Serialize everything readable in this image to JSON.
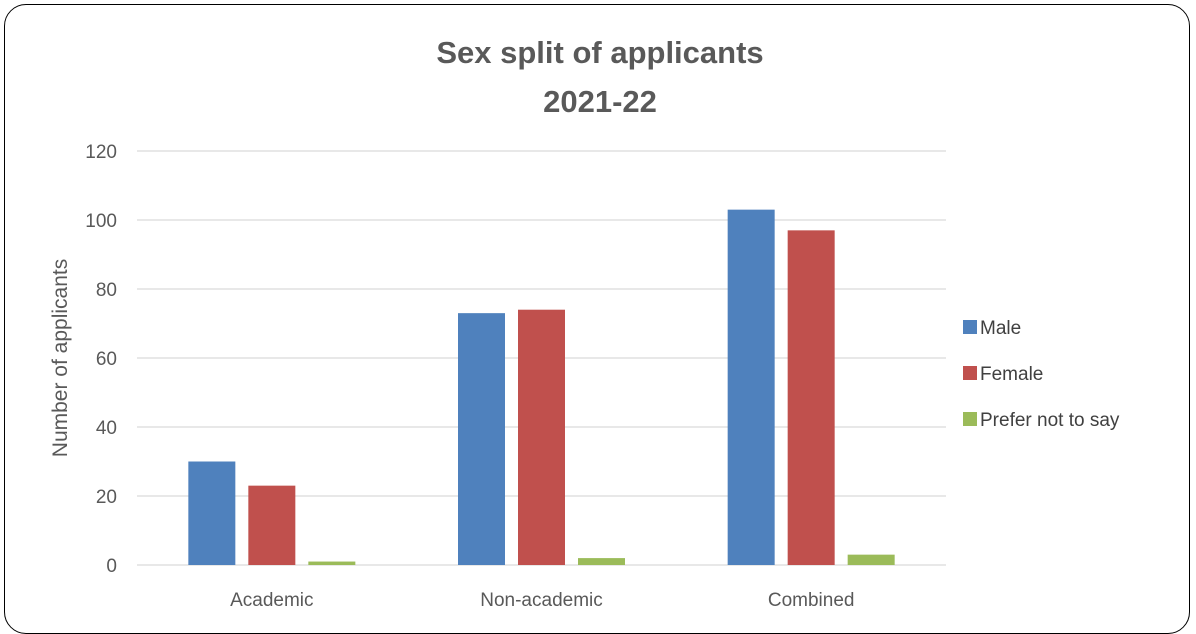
{
  "chart_data": {
    "type": "bar",
    "title": [
      "Sex split of applicants",
      "2021-22"
    ],
    "xlabel": "",
    "ylabel": "Number of applicants",
    "categories": [
      "Academic",
      "Non-academic",
      "Combined"
    ],
    "series": [
      {
        "name": "Male",
        "color": "#4F81BD",
        "values": [
          30,
          73,
          103
        ]
      },
      {
        "name": "Female",
        "color": "#C0504D",
        "values": [
          23,
          74,
          97
        ]
      },
      {
        "name": "Prefer not to say",
        "color": "#9BBB59",
        "values": [
          1,
          2,
          3
        ]
      }
    ],
    "ylim": [
      0,
      120
    ],
    "yticks": [
      0,
      20,
      40,
      60,
      80,
      100,
      120
    ],
    "grid": true,
    "legend_position": "right"
  },
  "colors": {
    "gridline": "#d9d9d9",
    "text": "#595959"
  }
}
